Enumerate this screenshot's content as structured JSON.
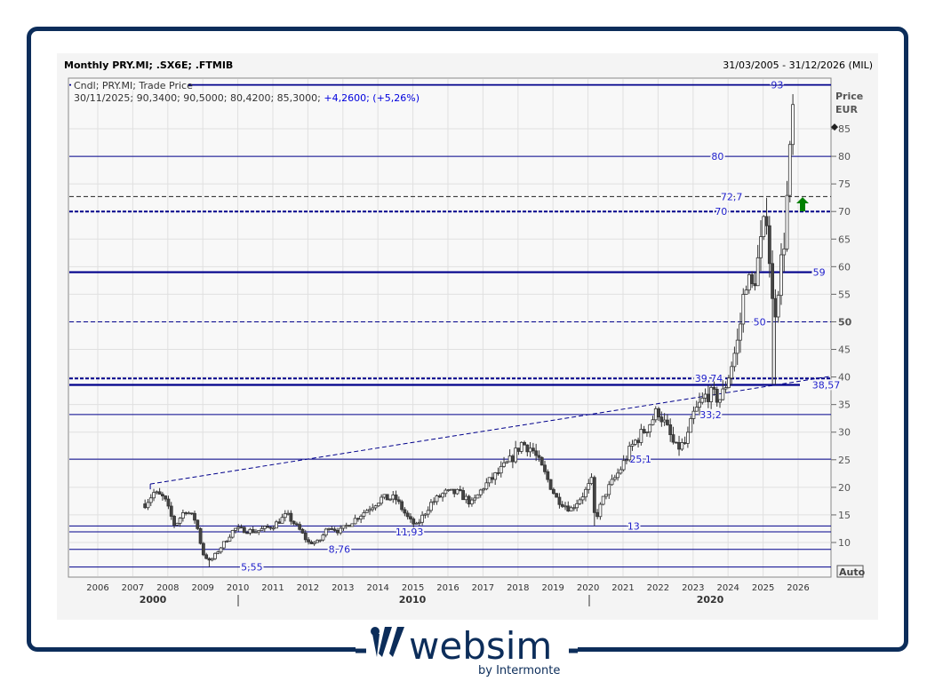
{
  "header": {
    "title": "Monthly PRY.MI; .SX6E; .FTMIB",
    "range": "31/03/2005 - 31/12/2026 (MIL)"
  },
  "legend": {
    "line1": "Cndl; PRY.MI; Trade Price",
    "ohlc": "30/11/2025; 90,3400; 90,5000; 80,4200; 85,3000;",
    "change": "+4,2600; (+5,26%)"
  },
  "axis": {
    "unit1": "Price",
    "unit2": "EUR",
    "auto": "Auto"
  },
  "logo": {
    "name": "websim",
    "sub": "by Intermonte"
  },
  "colors": {
    "line": "#00008b",
    "candle": "#333333",
    "arrow": "#008000",
    "frame": "#0c2d5a"
  },
  "chart_data": {
    "type": "candlestick",
    "title": "Monthly PRY.MI; .SX6E; .FTMIB",
    "ylabel": "Price EUR",
    "ylim": [
      3.7,
      98.4
    ],
    "xlim": [
      2005.0,
      2027.0
    ],
    "yticks": [
      10,
      15,
      20,
      25,
      30,
      35,
      40,
      45,
      50,
      55,
      60,
      65,
      70,
      75,
      80,
      85
    ],
    "xticks": [
      "2006",
      "2007",
      "2008",
      "2009",
      "2010",
      "2011",
      "2012",
      "2013",
      "2014",
      "2015",
      "2016",
      "2017",
      "2018",
      "2019",
      "2020",
      "2021",
      "2022",
      "2023",
      "2024",
      "2025",
      "2026"
    ],
    "decades": [
      "2000",
      "2010",
      "2020"
    ],
    "last_price": 85.3,
    "close_series": [
      [
        2007.35,
        17
      ],
      [
        2007.6,
        19
      ],
      [
        2007.9,
        18
      ],
      [
        2008.2,
        13
      ],
      [
        2008.5,
        16
      ],
      [
        2008.8,
        14
      ],
      [
        2009.0,
        8
      ],
      [
        2009.2,
        6.5
      ],
      [
        2009.5,
        9
      ],
      [
        2009.9,
        12.5
      ],
      [
        2010.5,
        12
      ],
      [
        2011.0,
        13
      ],
      [
        2011.4,
        15
      ],
      [
        2011.8,
        12
      ],
      [
        2012.0,
        10
      ],
      [
        2012.3,
        10
      ],
      [
        2012.6,
        13
      ],
      [
        2012.9,
        12
      ],
      [
        2013.3,
        14
      ],
      [
        2013.7,
        16
      ],
      [
        2014.1,
        18
      ],
      [
        2014.5,
        18
      ],
      [
        2014.9,
        14
      ],
      [
        2015.1,
        13
      ],
      [
        2015.5,
        17
      ],
      [
        2015.9,
        19
      ],
      [
        2016.3,
        19
      ],
      [
        2016.7,
        17
      ],
      [
        2017.0,
        20
      ],
      [
        2017.5,
        23
      ],
      [
        2017.8,
        25
      ],
      [
        2018.1,
        28
      ],
      [
        2018.4,
        27
      ],
      [
        2018.8,
        22
      ],
      [
        2019.1,
        18
      ],
      [
        2019.5,
        16
      ],
      [
        2019.9,
        19
      ],
      [
        2020.1,
        21
      ],
      [
        2020.2,
        14
      ],
      [
        2020.5,
        19
      ],
      [
        2020.9,
        23
      ],
      [
        2021.3,
        28
      ],
      [
        2021.7,
        31
      ],
      [
        2022.0,
        34
      ],
      [
        2022.3,
        30
      ],
      [
        2022.5,
        27
      ],
      [
        2022.8,
        28
      ],
      [
        2023.0,
        33
      ],
      [
        2023.4,
        37
      ],
      [
        2023.8,
        36
      ],
      [
        2024.0,
        40
      ],
      [
        2024.3,
        47
      ],
      [
        2024.5,
        58
      ],
      [
        2024.7,
        56
      ],
      [
        2025.0,
        66
      ],
      [
        2025.1,
        70
      ],
      [
        2025.3,
        50
      ],
      [
        2025.4,
        55
      ],
      [
        2025.6,
        65
      ],
      [
        2025.75,
        78
      ],
      [
        2025.85,
        88
      ],
      [
        2025.92,
        85.3
      ]
    ],
    "levels": [
      {
        "value": 93,
        "label": "93",
        "style": "solid",
        "labelAt": 2025.4
      },
      {
        "value": 80,
        "label": "80",
        "style": "solid",
        "labelAt": 2023.7
      },
      {
        "value": 72.7,
        "label": "72,7",
        "style": "dash-black",
        "labelAt": 2024.1
      },
      {
        "value": 70,
        "label": "70",
        "style": "dash-bold",
        "labelAt": 2023.8
      },
      {
        "value": 59,
        "label": "59",
        "style": "bold",
        "labelAt": 2026.6
      },
      {
        "value": 50,
        "label": "50",
        "style": "dash",
        "labelAt": 2024.9
      },
      {
        "value": 39.74,
        "label": "39,74",
        "style": "dash-bold",
        "labelAt": 2023.45
      },
      {
        "value": 38.57,
        "label": "38,57",
        "style": "bold",
        "labelAt": 2026.8
      },
      {
        "value": 33.2,
        "label": "33,2",
        "style": "solid",
        "labelAt": 2023.5
      },
      {
        "value": 25.1,
        "label": "25,1",
        "style": "solid",
        "labelAt": 2021.5
      },
      {
        "value": 13,
        "label": "13",
        "style": "solid",
        "labelAt": 2021.3
      },
      {
        "value": 11.93,
        "label": "11,93",
        "style": "solid",
        "labelAt": 2014.9
      },
      {
        "value": 8.76,
        "label": "8,76",
        "style": "solid",
        "labelAt": 2012.9
      },
      {
        "value": 5.55,
        "label": "5,55",
        "style": "solid",
        "labelAt": 2010.4
      }
    ],
    "trendline": [
      [
        2007.5,
        20.6
      ],
      [
        2026.9,
        40.1
      ]
    ]
  }
}
